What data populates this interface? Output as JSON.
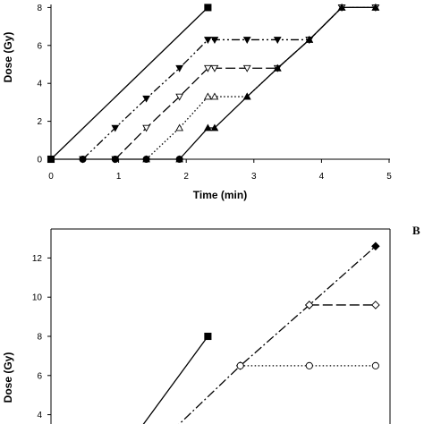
{
  "chart_data": [
    {
      "type": "line",
      "panel": "A",
      "xlabel": "Time (min)",
      "ylabel": "Dose (Gy)",
      "xlim": [
        0,
        5
      ],
      "ylim": [
        0,
        8
      ],
      "xticks": [
        "0",
        "1",
        "2",
        "3",
        "4",
        "5"
      ],
      "yticks": [
        "0",
        "2",
        "4",
        "6",
        "8"
      ],
      "grid": false,
      "series": [
        {
          "marker": "square-filled",
          "dash": "solid",
          "points": [
            [
              0,
              0
            ],
            [
              2.32,
              8.0
            ]
          ]
        },
        {
          "marker": "triangle-down-filled",
          "dash": "dash-dot-dot",
          "points": [
            [
              0.47,
              0
            ],
            [
              0.95,
              1.65
            ],
            [
              1.41,
              3.2
            ],
            [
              1.9,
              4.8
            ],
            [
              2.32,
              6.3
            ],
            [
              2.42,
              6.3
            ],
            [
              2.9,
              6.3
            ],
            [
              3.35,
              6.3
            ],
            [
              3.82,
              6.3
            ],
            [
              4.3,
              8.0
            ],
            [
              4.8,
              8.0
            ]
          ]
        },
        {
          "marker": "triangle-down-open",
          "dash": "long-dash",
          "points": [
            [
              0.95,
              0
            ],
            [
              1.41,
              1.65
            ],
            [
              1.9,
              3.3
            ],
            [
              2.32,
              4.8
            ],
            [
              2.42,
              4.8
            ],
            [
              2.9,
              4.8
            ],
            [
              3.35,
              4.8
            ],
            [
              3.82,
              6.3
            ],
            [
              4.3,
              8.0
            ],
            [
              4.8,
              8.0
            ]
          ]
        },
        {
          "marker": "triangle-up-open",
          "dash": "dotted",
          "points": [
            [
              1.41,
              0
            ],
            [
              1.9,
              1.65
            ],
            [
              2.32,
              3.3
            ],
            [
              2.42,
              3.3
            ],
            [
              2.9,
              3.3
            ],
            [
              3.35,
              4.8
            ],
            [
              3.82,
              6.3
            ],
            [
              4.3,
              8.0
            ],
            [
              4.8,
              8.0
            ]
          ]
        },
        {
          "marker": "triangle-up-filled",
          "dash": "solid",
          "points": [
            [
              1.9,
              0
            ],
            [
              2.32,
              1.65
            ],
            [
              2.42,
              1.65
            ],
            [
              2.9,
              3.3
            ],
            [
              3.35,
              4.8
            ],
            [
              3.82,
              6.3
            ],
            [
              4.3,
              8.0
            ],
            [
              4.8,
              8.0
            ]
          ]
        },
        {
          "marker": "circle-filled",
          "dash": "solid",
          "points": [
            [
              0,
              0
            ],
            [
              0.47,
              0
            ],
            [
              0.95,
              0
            ],
            [
              1.41,
              0
            ],
            [
              1.9,
              0
            ]
          ]
        }
      ]
    },
    {
      "type": "line",
      "panel": "B",
      "panel_label": "B",
      "xlabel": "",
      "ylabel": "Dose (Gy)",
      "ylim": [
        3.5,
        12.8
      ],
      "yticks": [
        "4",
        "6",
        "8",
        "10",
        "12"
      ],
      "grid": false,
      "series": [
        {
          "marker": "square-filled",
          "dash": "solid",
          "points": [
            [
              1.3,
              3.2
            ],
            [
              2.32,
              8.0
            ]
          ]
        },
        {
          "marker": "diamond-filled",
          "dash": "dash-dot",
          "points": [
            [
              1.8,
              3.2
            ],
            [
              2.8,
              6.5
            ],
            [
              3.82,
              9.6
            ],
            [
              4.8,
              12.6
            ]
          ]
        },
        {
          "marker": "diamond-open",
          "dash": "long-dash",
          "points": [
            [
              3.82,
              9.6
            ],
            [
              4.8,
              9.6
            ]
          ]
        },
        {
          "marker": "circle-open",
          "dash": "dotted",
          "points": [
            [
              2.8,
              6.5
            ],
            [
              3.82,
              6.5
            ],
            [
              4.8,
              6.5
            ]
          ]
        }
      ]
    }
  ]
}
